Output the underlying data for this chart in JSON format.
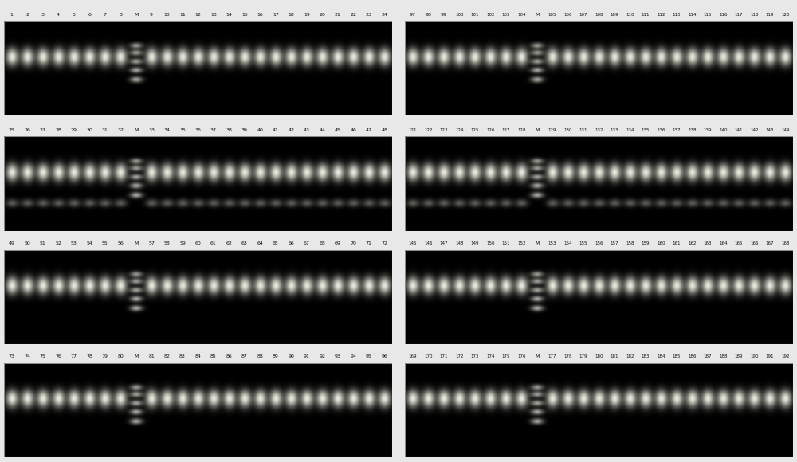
{
  "figure_bg": "#e8e8e8",
  "panel_bg": "#000000",
  "label_color": "#000000",
  "panels": [
    {
      "row": 0,
      "col": 0,
      "labels": [
        "1",
        "2",
        "3",
        "4",
        "5",
        "6",
        "7",
        "8",
        "M",
        "9",
        "10",
        "11",
        "12",
        "13",
        "14",
        "15",
        "16",
        "17",
        "18",
        "19",
        "20",
        "21",
        "22",
        "23",
        "24"
      ],
      "has_upper_band": false
    },
    {
      "row": 0,
      "col": 1,
      "labels": [
        "97",
        "98",
        "99",
        "100",
        "101",
        "102",
        "103",
        "104",
        "M",
        "105",
        "106",
        "107",
        "108",
        "109",
        "110",
        "111",
        "112",
        "113",
        "114",
        "115",
        "116",
        "117",
        "118",
        "119",
        "120"
      ],
      "has_upper_band": false
    },
    {
      "row": 1,
      "col": 0,
      "labels": [
        "25",
        "26",
        "27",
        "28",
        "29",
        "30",
        "31",
        "32",
        "M",
        "33",
        "34",
        "35",
        "36",
        "37",
        "38",
        "39",
        "40",
        "41",
        "42",
        "43",
        "44",
        "45",
        "46",
        "47",
        "48"
      ],
      "has_upper_band": true
    },
    {
      "row": 1,
      "col": 1,
      "labels": [
        "121",
        "122",
        "123",
        "124",
        "125",
        "126",
        "127",
        "128",
        "M",
        "129",
        "130",
        "131",
        "132",
        "133",
        "134",
        "135",
        "136",
        "137",
        "138",
        "139",
        "140",
        "141",
        "142",
        "143",
        "144"
      ],
      "has_upper_band": true
    },
    {
      "row": 2,
      "col": 0,
      "labels": [
        "49",
        "50",
        "51",
        "52",
        "53",
        "54",
        "55",
        "56",
        "M",
        "57",
        "58",
        "59",
        "60",
        "61",
        "62",
        "63",
        "64",
        "65",
        "66",
        "67",
        "68",
        "69",
        "70",
        "71",
        "72"
      ],
      "has_upper_band": false
    },
    {
      "row": 2,
      "col": 1,
      "labels": [
        "145",
        "146",
        "147",
        "148",
        "149",
        "150",
        "151",
        "152",
        "M",
        "153",
        "154",
        "155",
        "156",
        "157",
        "158",
        "159",
        "160",
        "161",
        "162",
        "163",
        "164",
        "165",
        "166",
        "167",
        "168"
      ],
      "has_upper_band": false
    },
    {
      "row": 3,
      "col": 0,
      "labels": [
        "73",
        "74",
        "75",
        "76",
        "77",
        "78",
        "79",
        "80",
        "M",
        "81",
        "82",
        "83",
        "84",
        "85",
        "86",
        "87",
        "88",
        "89",
        "90",
        "91",
        "92",
        "93",
        "94",
        "95",
        "96"
      ],
      "has_upper_band": false
    },
    {
      "row": 3,
      "col": 1,
      "labels": [
        "169",
        "170",
        "171",
        "172",
        "173",
        "174",
        "175",
        "176",
        "M",
        "177",
        "178",
        "179",
        "180",
        "181",
        "182",
        "183",
        "184",
        "185",
        "186",
        "187",
        "188",
        "189",
        "190",
        "191",
        "192"
      ],
      "has_upper_band": false
    }
  ]
}
